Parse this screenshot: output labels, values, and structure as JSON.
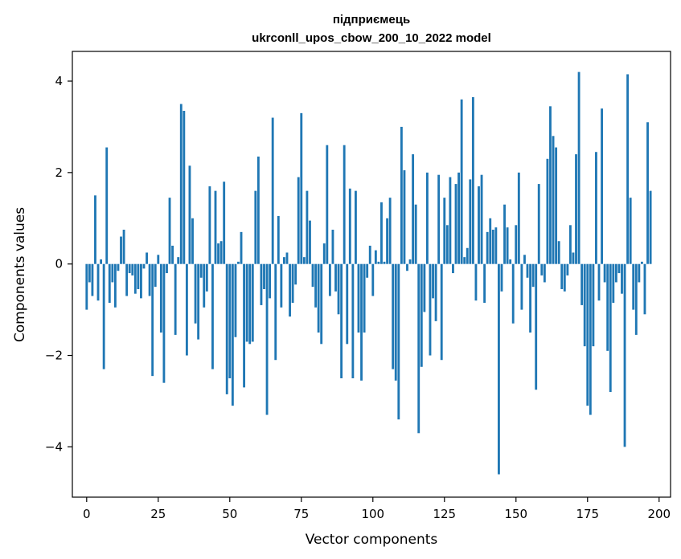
{
  "chart_data": {
    "type": "bar",
    "title_line1": "підприємець",
    "title_line2": "ukrconll_upos_cbow_200_10_2022 model",
    "xlabel": "Vector components",
    "ylabel": "Components values",
    "xlim": [
      -5,
      204
    ],
    "ylim": [
      -5.1,
      4.65
    ],
    "xticks": [
      0,
      25,
      50,
      75,
      100,
      125,
      150,
      175,
      200
    ],
    "xtick_labels": [
      "0",
      "25",
      "50",
      "75",
      "100",
      "125",
      "150",
      "175",
      "200"
    ],
    "yticks": [
      -4,
      -2,
      0,
      2,
      4
    ],
    "ytick_labels": [
      "−4",
      "−2",
      "0",
      "2",
      "4"
    ],
    "values": [
      -1.0,
      -0.4,
      -0.7,
      1.5,
      -0.8,
      0.1,
      -2.3,
      2.55,
      -0.85,
      -0.4,
      -0.95,
      -0.15,
      0.6,
      0.75,
      -0.7,
      -0.2,
      -0.25,
      -0.65,
      -0.55,
      -0.75,
      -0.1,
      0.25,
      -0.7,
      -2.45,
      -0.5,
      0.2,
      -1.5,
      -2.6,
      -0.2,
      1.45,
      0.4,
      -1.55,
      0.15,
      3.5,
      3.35,
      -2.0,
      2.15,
      1.0,
      -1.3,
      -1.65,
      -0.3,
      -0.95,
      -0.6,
      1.7,
      -2.3,
      1.6,
      0.45,
      0.5,
      1.8,
      -2.85,
      -2.5,
      -3.1,
      -1.6,
      0.05,
      0.7,
      -2.7,
      -1.7,
      -1.75,
      -1.7,
      1.6,
      2.35,
      -0.9,
      -0.55,
      -3.3,
      -0.75,
      3.2,
      -2.1,
      1.05,
      -0.95,
      0.15,
      0.25,
      -1.15,
      -0.85,
      -0.45,
      1.9,
      3.3,
      0.15,
      1.6,
      0.95,
      -0.5,
      -0.95,
      -1.5,
      -1.75,
      0.45,
      2.6,
      -0.7,
      0.75,
      -0.6,
      -1.1,
      -2.5,
      2.6,
      -1.75,
      1.65,
      -2.5,
      1.6,
      -1.5,
      -2.55,
      -1.5,
      -0.3,
      0.4,
      -0.7,
      0.3,
      0.05,
      1.35,
      0.05,
      1.0,
      1.45,
      -2.3,
      -2.55,
      -3.4,
      3.0,
      2.05,
      -0.15,
      0.1,
      2.4,
      1.3,
      -3.7,
      -2.25,
      -1.05,
      2.0,
      -2.0,
      -0.75,
      -1.25,
      1.95,
      -2.1,
      1.45,
      0.85,
      1.9,
      -0.2,
      1.75,
      2.0,
      3.6,
      0.15,
      0.35,
      1.85,
      3.65,
      -0.8,
      1.7,
      1.95,
      -0.85,
      0.7,
      1.0,
      0.75,
      0.8,
      -4.6,
      -0.6,
      1.3,
      0.8,
      0.1,
      -1.3,
      0.85,
      2.0,
      -1.0,
      0.2,
      -0.3,
      -1.5,
      -0.5,
      -2.75,
      1.75,
      -0.25,
      -0.4,
      2.3,
      3.45,
      2.8,
      2.55,
      0.5,
      -0.55,
      -0.6,
      -0.25,
      0.85,
      0.25,
      2.4,
      4.2,
      -0.9,
      -1.8,
      -3.1,
      -3.3,
      -1.8,
      2.45,
      -0.8,
      3.4,
      -0.4,
      -1.9,
      -2.8,
      -0.85,
      -0.4,
      -0.2,
      -0.65,
      -4.0,
      4.15,
      1.45,
      -1.0,
      -1.55,
      -0.4,
      0.05,
      -1.1,
      3.1,
      1.6
    ]
  }
}
